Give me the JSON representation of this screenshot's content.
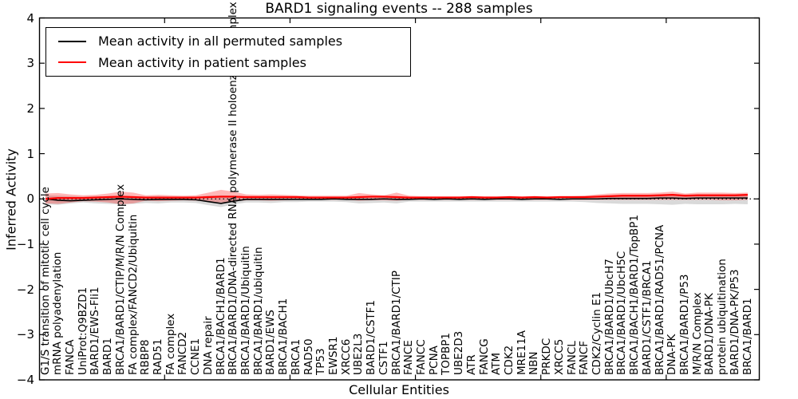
{
  "title": "BARD1 signaling events -- 288 samples",
  "legend": {
    "entries": [
      {
        "label": "Mean activity in all permuted samples",
        "color": "#000000"
      },
      {
        "label": "Mean activity in patient samples",
        "color": "#ff0000"
      }
    ]
  },
  "chart_data": {
    "type": "line",
    "title": "BARD1 signaling events -- 288 samples",
    "xlabel": "Cellular Entities",
    "ylabel": "Inferred Activity",
    "ylim": [
      -4,
      4
    ],
    "ytick_values": [
      4,
      3,
      2,
      1,
      0,
      -1,
      -2,
      -3,
      -4
    ],
    "ytick_labels": [
      "4",
      "3",
      "2",
      "1",
      "0",
      "−1",
      "−2",
      "−3",
      "−4"
    ],
    "grid": false,
    "legend_position": "upper left",
    "zero_line": {
      "y": 0,
      "style": "dotted",
      "color": "#000000"
    },
    "band_colors": {
      "permuted": "rgba(128,128,128,0.30)",
      "patient": "rgba(255,0,0,0.28)"
    },
    "categories": [
      "G1/S transition of mitotic cell cycle",
      "mRNA polyadenylation",
      "FANCA",
      "UniProt:Q9BZD1",
      "BARD1/EWS-Fli1",
      "BARD1",
      "BRCA1/BARD1/CTIP/M/R/N Complex",
      "FA complex/FANCD2/Ubiquitin",
      "RBBP8",
      "RAD51",
      "FA complex",
      "FANCD2",
      "CCNE1",
      "DNA repair",
      "BRCA1/BACH1/BARD1",
      "BRCA1/BARD1/DNA-directed RNA polymerase II holoenzyme complex",
      "BRCA1/BARD1/Ubiquitin",
      "BRCA1/BARD1/ubiquitin",
      "BARD1/EWS",
      "BRCA1/BACH1",
      "BRCA1",
      "RAD50",
      "TP53",
      "EWSR1",
      "XRCC6",
      "UBE2L3",
      "BARD1/CSTF1",
      "CSTF1",
      "BRCA1/BARD1/CTIP",
      "FANCE",
      "FANCC",
      "PCNA",
      "TOPBP1",
      "UBE2D3",
      "ATR",
      "FANCG",
      "ATM",
      "CDK2",
      "MRE11A",
      "NBN",
      "PRKDC",
      "XRCC5",
      "FANCL",
      "FANCF",
      "CDK2/Cyclin E1",
      "BRCA1/BARD1/UbcH7",
      "BRCA1/BARD1/UbcH5C",
      "BRCA1/BACH1/BARD1/TopBP1",
      "BARD1/CSTF1/BRCA1",
      "BRCA1/BARD1/RAD51/PCNA",
      "DNA-PK",
      "BRCA1/BARD1/P53",
      "M/R/N Complex",
      "BARD1/DNA-PK",
      "protein ubiquitination",
      "BARD1/DNA-PK/P53",
      "BRCA1/BARD1"
    ],
    "series": [
      {
        "name": "Mean activity in all permuted samples",
        "color": "#000000",
        "values": [
          0.0,
          -0.03,
          -0.04,
          -0.03,
          -0.02,
          -0.01,
          0.0,
          -0.01,
          -0.02,
          -0.01,
          -0.01,
          -0.01,
          -0.02,
          -0.06,
          -0.1,
          -0.05,
          -0.01,
          -0.01,
          -0.01,
          -0.01,
          -0.01,
          -0.01,
          -0.01,
          0.0,
          -0.01,
          -0.01,
          -0.01,
          0.0,
          -0.01,
          -0.01,
          0.0,
          -0.01,
          0.0,
          -0.01,
          0.0,
          -0.01,
          0.0,
          0.0,
          -0.01,
          0.0,
          0.0,
          -0.01,
          0.0,
          0.0,
          0.0,
          0.01,
          0.01,
          0.01,
          0.01,
          0.02,
          0.02,
          0.01,
          0.02,
          0.02,
          0.02,
          0.02,
          0.02
        ],
        "band_upper": [
          0.08,
          0.07,
          0.06,
          0.05,
          0.06,
          0.06,
          0.07,
          0.06,
          0.05,
          0.06,
          0.05,
          0.05,
          0.05,
          0.07,
          0.08,
          0.07,
          0.05,
          0.05,
          0.05,
          0.05,
          0.05,
          0.04,
          0.04,
          0.04,
          0.05,
          0.06,
          0.05,
          0.05,
          0.06,
          0.04,
          0.04,
          0.04,
          0.04,
          0.04,
          0.04,
          0.04,
          0.04,
          0.04,
          0.04,
          0.04,
          0.04,
          0.04,
          0.04,
          0.05,
          0.06,
          0.07,
          0.08,
          0.08,
          0.08,
          0.08,
          0.09,
          0.08,
          0.08,
          0.08,
          0.08,
          0.08,
          0.09
        ],
        "band_lower": [
          -0.12,
          -0.13,
          -0.1,
          -0.08,
          -0.1,
          -0.11,
          -0.12,
          -0.11,
          -0.09,
          -0.1,
          -0.08,
          -0.08,
          -0.09,
          -0.14,
          -0.18,
          -0.12,
          -0.08,
          -0.08,
          -0.09,
          -0.07,
          -0.07,
          -0.06,
          -0.06,
          -0.06,
          -0.07,
          -0.1,
          -0.09,
          -0.08,
          -0.1,
          -0.06,
          -0.06,
          -0.06,
          -0.06,
          -0.06,
          -0.06,
          -0.06,
          -0.06,
          -0.06,
          -0.06,
          -0.06,
          -0.06,
          -0.06,
          -0.06,
          -0.07,
          -0.09,
          -0.1,
          -0.11,
          -0.11,
          -0.11,
          -0.12,
          -0.13,
          -0.11,
          -0.12,
          -0.12,
          -0.12,
          -0.11,
          -0.12
        ]
      },
      {
        "name": "Mean activity in patient samples",
        "color": "#ff0000",
        "values": [
          0.0,
          0.02,
          0.02,
          0.02,
          0.03,
          0.04,
          0.05,
          0.04,
          0.03,
          0.03,
          0.03,
          0.03,
          0.03,
          0.04,
          0.05,
          0.05,
          0.04,
          0.04,
          0.04,
          0.04,
          0.04,
          0.03,
          0.03,
          0.03,
          0.03,
          0.04,
          0.05,
          0.05,
          0.04,
          0.03,
          0.03,
          0.03,
          0.03,
          0.03,
          0.04,
          0.03,
          0.03,
          0.04,
          0.03,
          0.04,
          0.03,
          0.04,
          0.04,
          0.04,
          0.05,
          0.06,
          0.07,
          0.07,
          0.07,
          0.08,
          0.09,
          0.07,
          0.08,
          0.08,
          0.08,
          0.08,
          0.09
        ],
        "band_upper": [
          0.12,
          0.13,
          0.1,
          0.08,
          0.09,
          0.12,
          0.16,
          0.14,
          0.08,
          0.09,
          0.08,
          0.07,
          0.08,
          0.14,
          0.2,
          0.16,
          0.1,
          0.09,
          0.1,
          0.09,
          0.08,
          0.07,
          0.07,
          0.07,
          0.07,
          0.13,
          0.1,
          0.08,
          0.14,
          0.07,
          0.06,
          0.06,
          0.06,
          0.06,
          0.06,
          0.06,
          0.06,
          0.06,
          0.06,
          0.06,
          0.06,
          0.06,
          0.06,
          0.07,
          0.1,
          0.12,
          0.13,
          0.13,
          0.13,
          0.14,
          0.16,
          0.12,
          0.14,
          0.14,
          0.14,
          0.13,
          0.14
        ],
        "band_lower": [
          -0.1,
          -0.11,
          -0.08,
          -0.05,
          -0.06,
          -0.08,
          -0.12,
          -0.1,
          -0.04,
          -0.05,
          -0.04,
          -0.03,
          -0.04,
          -0.06,
          -0.08,
          -0.06,
          -0.03,
          -0.03,
          -0.04,
          -0.03,
          -0.02,
          -0.02,
          -0.02,
          -0.02,
          -0.02,
          -0.04,
          -0.03,
          -0.03,
          -0.04,
          -0.02,
          -0.02,
          -0.02,
          -0.02,
          -0.02,
          -0.02,
          -0.02,
          -0.02,
          -0.02,
          -0.02,
          -0.02,
          -0.02,
          -0.02,
          -0.02,
          -0.02,
          -0.02,
          -0.02,
          -0.02,
          -0.02,
          -0.02,
          -0.02,
          -0.02,
          -0.02,
          -0.02,
          -0.02,
          -0.03,
          -0.03,
          -0.02
        ]
      }
    ]
  }
}
